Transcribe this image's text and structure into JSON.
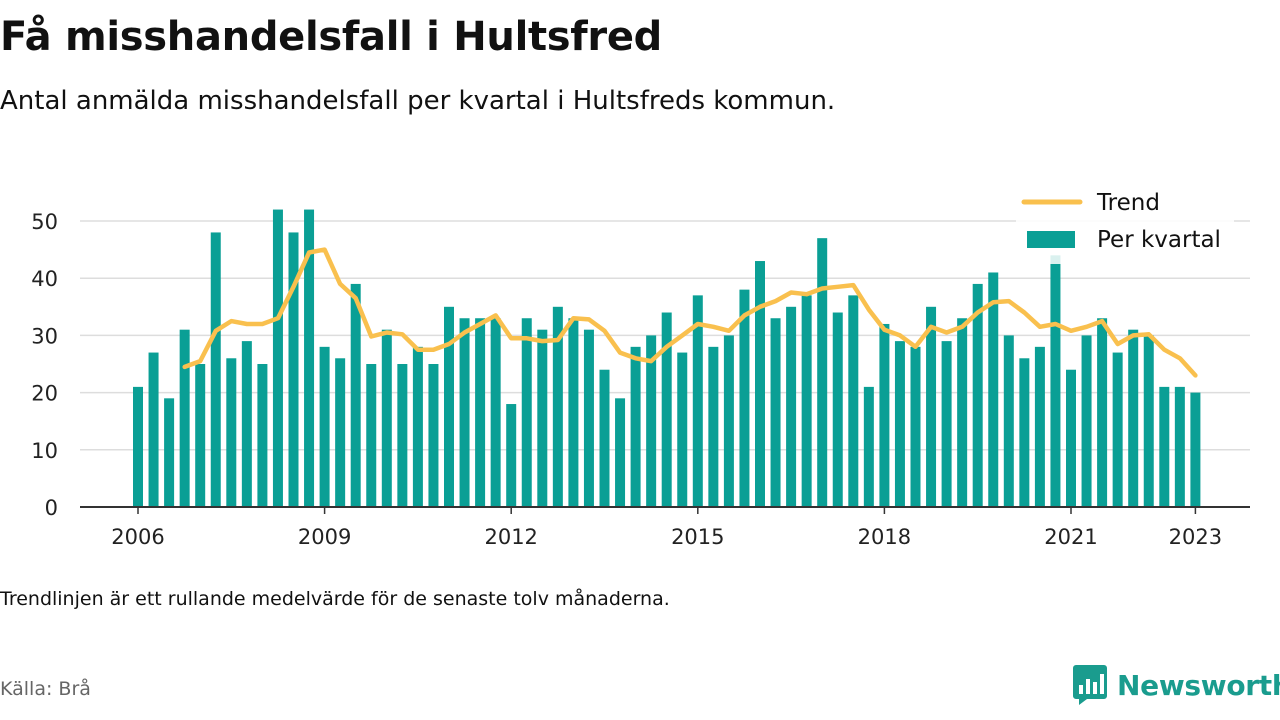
{
  "title": "Få misshandelsfall i Hultsfred",
  "subtitle": "Antal anmälda misshandelsfall per kvartal i Hultsfreds kommun.",
  "note": "Trendlinjen är ett rullande medelvärde för de senaste tolv månaderna.",
  "source": "Källa: Brå",
  "brand": {
    "name": "Newsworthy",
    "icon": "newsworthy-logo-icon"
  },
  "colors": {
    "bars": "#0a9f95",
    "trend": "#f9c04e",
    "grid": "#dddddd",
    "axis": "#333333",
    "brand": "#1a9c8e"
  },
  "chart_data": {
    "type": "bar",
    "x_start": "2006-Q1",
    "x_ticks": [
      "2006",
      "2009",
      "2012",
      "2015",
      "2018",
      "2021",
      "2023"
    ],
    "y_ticks": [
      0,
      10,
      20,
      30,
      40,
      50
    ],
    "ylim": [
      0,
      52
    ],
    "grid": "horizontal",
    "legend_position": "top-right",
    "legend": [
      "Trend",
      "Per kvartal"
    ],
    "series": [
      {
        "name": "Per kvartal",
        "type": "bar",
        "values": [
          21,
          27,
          19,
          31,
          25,
          48,
          26,
          29,
          25,
          52,
          48,
          52,
          28,
          26,
          39,
          25,
          31,
          25,
          28,
          25,
          35,
          33,
          33,
          33,
          18,
          33,
          31,
          35,
          33,
          31,
          24,
          19,
          28,
          30,
          34,
          27,
          37,
          28,
          30,
          38,
          43,
          33,
          35,
          37,
          47,
          34,
          37,
          21,
          32,
          29,
          28,
          35,
          29,
          33,
          39,
          41,
          30,
          26,
          28,
          44,
          24,
          30,
          33,
          27,
          31,
          30,
          21,
          21,
          20
        ]
      },
      {
        "name": "Trend",
        "type": "line",
        "values": [
          null,
          null,
          null,
          24.5,
          25.5,
          30.8,
          32.5,
          32.0,
          32.0,
          33.0,
          38.5,
          44.5,
          45.0,
          39.0,
          36.5,
          29.8,
          30.5,
          30.2,
          27.5,
          27.5,
          28.5,
          30.5,
          32.0,
          33.5,
          29.5,
          29.5,
          29.0,
          29.2,
          33.0,
          32.8,
          30.8,
          27.0,
          26.0,
          25.5,
          28.0,
          30.0,
          32.0,
          31.5,
          30.8,
          33.5,
          35.0,
          36.0,
          37.5,
          37.2,
          38.2,
          38.5,
          38.8,
          34.5,
          31.0,
          30.0,
          28.0,
          31.5,
          30.5,
          31.5,
          34.0,
          35.8,
          36.0,
          34.0,
          31.5,
          32.0,
          30.8,
          31.5,
          32.5,
          28.5,
          30.0,
          30.2,
          27.5,
          26.0,
          23.0
        ]
      }
    ]
  }
}
